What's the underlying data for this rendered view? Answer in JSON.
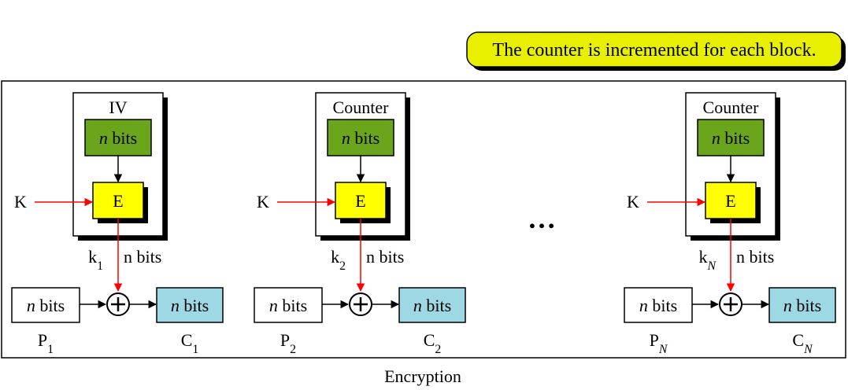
{
  "note": {
    "text": "The counter is incremented for each block.",
    "fill": "#e8f000"
  },
  "caption": "Encryption",
  "ellipsis": "…",
  "colors": {
    "nbits_green": "#6aa51c",
    "encrypt_yellow": "#ffff00",
    "cipher_blue": "#9ed8e4",
    "key_arrow": "#ff0000"
  },
  "blocks": [
    {
      "header": "IV",
      "nbits_label": "n bits",
      "encrypt_label": "E",
      "key_label": "K",
      "keystream_base": "k",
      "keystream_sub": "1",
      "keystream_bits": "n bits",
      "plaintext_box": "n bits",
      "plaintext_base": "P",
      "plaintext_sub": "1",
      "ciphertext_box": "n bits",
      "ciphertext_base": "C",
      "ciphertext_sub": "1"
    },
    {
      "header": "Counter",
      "nbits_label": "n bits",
      "encrypt_label": "E",
      "key_label": "K",
      "keystream_base": "k",
      "keystream_sub": "2",
      "keystream_bits": "n bits",
      "plaintext_box": "n bits",
      "plaintext_base": "P",
      "plaintext_sub": "2",
      "ciphertext_box": "n bits",
      "ciphertext_base": "C",
      "ciphertext_sub": "2"
    },
    {
      "header": "Counter",
      "nbits_label": "n bits",
      "encrypt_label": "E",
      "key_label": "K",
      "keystream_base": "k",
      "keystream_sub": "N",
      "keystream_bits": "n bits",
      "plaintext_box": "n bits",
      "plaintext_base": "P",
      "plaintext_sub": "N",
      "ciphertext_box": "n bits",
      "ciphertext_base": "C",
      "ciphertext_sub": "N"
    }
  ]
}
